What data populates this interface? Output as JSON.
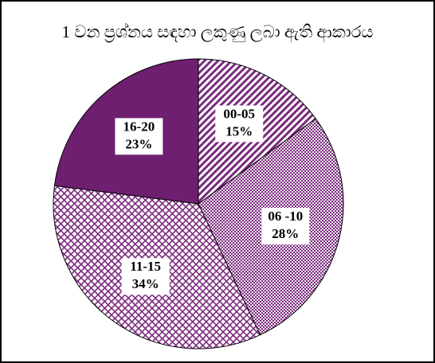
{
  "chart_data": {
    "type": "pie",
    "title": "1 වන ප්‍රශ්නය සඳහා ලකුණු ලබා ඇති ආකාරය",
    "categories": [
      "00-05",
      "06 -10",
      "11-15",
      "16-20"
    ],
    "values": [
      15,
      28,
      34,
      23
    ],
    "value_labels": [
      "15%",
      "28%",
      "34%",
      "23%"
    ],
    "colors": [
      "#7b2a7e",
      "#7b2a7e",
      "#7b2a7e",
      "#6e1f70"
    ],
    "patterns": [
      "diagonal",
      "dots",
      "crosshatch",
      "solid"
    ]
  }
}
